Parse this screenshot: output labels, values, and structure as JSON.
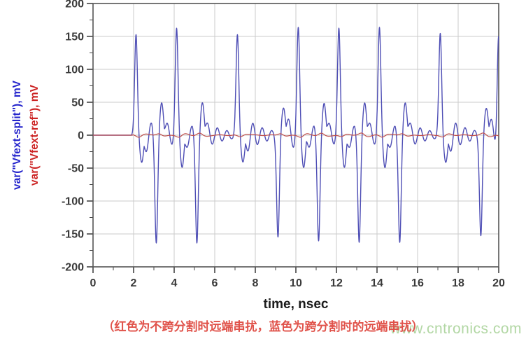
{
  "figure": {
    "xlabel": "time, nsec",
    "ylabel_series1": "var(\"Vfext-split\"), mV",
    "ylabel_series2": "var(\"Vfext-ref\"), mV",
    "caption": "（红色为不跨分割时远端串扰，蓝色为跨分割时的远端串扰）",
    "watermark": "www.cntronics.com"
  },
  "colors": {
    "trace_blue": "#4e4eb5",
    "trace_red": "#c0504d",
    "label_blue": "#2323cc",
    "label_red": "#cc2323",
    "caption_red": "#e0524a",
    "watermark_green": "#b2d7a4",
    "grid": "#cbcbcb",
    "frame": "#555555",
    "tick_color": "#444444",
    "tick_text": "#3a3a3a"
  },
  "chart_data": {
    "type": "line",
    "title": "",
    "xlabel": "time, nsec",
    "ylabel": "var(\"Vfext-split\"), mV / var(\"Vfext-ref\"), mV",
    "xlim": [
      0,
      20
    ],
    "ylim": [
      -200,
      200
    ],
    "x_major_ticks": [
      0,
      2,
      4,
      6,
      8,
      10,
      12,
      14,
      16,
      18,
      20
    ],
    "x_minor_step": 1,
    "y_major_ticks": [
      -200,
      -150,
      -100,
      -50,
      0,
      50,
      100,
      150,
      200
    ],
    "y_minor_step": 25,
    "grid": true,
    "legend": "caption below: red = far-end crosstalk without crossing split, blue = far-end crosstalk crossing split",
    "series": [
      {
        "name": "var(\"Vfext-split\")",
        "color_key": "trace_blue",
        "baseline_mV": 0,
        "spike_ringing_amplitude_mV": 40,
        "transitions": [
          {
            "t_ns": 2.0,
            "sign": 1,
            "peak_mV": 153
          },
          {
            "t_ns": 3.0,
            "sign": -1,
            "peak_mV": 150
          },
          {
            "t_ns": 4.0,
            "sign": 1,
            "peak_mV": 152
          },
          {
            "t_ns": 5.0,
            "sign": -1,
            "peak_mV": 153
          },
          {
            "t_ns": 7.0,
            "sign": 1,
            "peak_mV": 150
          },
          {
            "t_ns": 9.0,
            "sign": -1,
            "peak_mV": 152
          },
          {
            "t_ns": 10.0,
            "sign": 1,
            "peak_mV": 150
          },
          {
            "t_ns": 11.0,
            "sign": -1,
            "peak_mV": 150
          },
          {
            "t_ns": 12.0,
            "sign": 1,
            "peak_mV": 152
          },
          {
            "t_ns": 13.0,
            "sign": -1,
            "peak_mV": 152
          },
          {
            "t_ns": 14.0,
            "sign": 1,
            "peak_mV": 153
          },
          {
            "t_ns": 15.0,
            "sign": -1,
            "peak_mV": 152
          },
          {
            "t_ns": 17.0,
            "sign": 1,
            "peak_mV": 152
          },
          {
            "t_ns": 19.0,
            "sign": -1,
            "peak_mV": 150
          },
          {
            "t_ns": 19.87,
            "sign": 1,
            "peak_mV": 152
          }
        ]
      },
      {
        "name": "var(\"Vfext-ref\")",
        "color_key": "trace_red",
        "baseline_mV": 0,
        "ripple_mV": 3
      }
    ]
  }
}
